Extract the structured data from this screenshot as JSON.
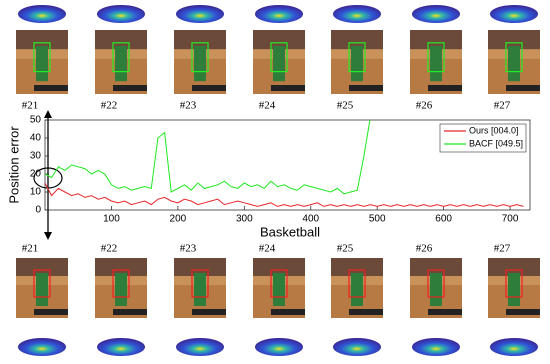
{
  "chart_data": {
    "type": "line",
    "xlabel": "Basketball",
    "ylabel": "Position error",
    "frames_top": [
      "#21",
      "#22",
      "#23",
      "#24",
      "#25",
      "#26",
      "#27"
    ],
    "frames_bottom": [
      "#21",
      "#22",
      "#23",
      "#24",
      "#25",
      "#26",
      "#27"
    ],
    "x": [
      0,
      10,
      20,
      30,
      40,
      50,
      60,
      70,
      80,
      90,
      100,
      110,
      120,
      130,
      140,
      150,
      160,
      170,
      180,
      190,
      200,
      210,
      220,
      230,
      240,
      250,
      260,
      270,
      280,
      290,
      300,
      310,
      320,
      330,
      340,
      350,
      360,
      370,
      380,
      390,
      400,
      410,
      420,
      430,
      440,
      450,
      460,
      470,
      480,
      490,
      500,
      510,
      520,
      530,
      540,
      550,
      560,
      570,
      580,
      590,
      600,
      610,
      620,
      630,
      640,
      650,
      660,
      670,
      680,
      690,
      700,
      710,
      720
    ],
    "series": [
      {
        "name": "Ours [004.0]",
        "color": "#e8262a",
        "values": [
          15,
          8,
          12,
          10,
          8,
          9,
          7,
          8,
          6,
          7,
          5,
          4,
          5,
          3,
          4,
          5,
          3,
          6,
          7,
          5,
          4,
          6,
          5,
          3,
          4,
          5,
          6,
          3,
          4,
          5,
          4,
          3,
          2,
          3,
          4,
          2,
          3,
          2,
          3,
          2,
          3,
          4,
          2,
          3,
          2,
          3,
          2,
          3,
          2,
          3,
          2,
          3,
          2,
          3,
          2,
          3,
          2,
          3,
          2,
          3,
          2,
          3,
          2,
          3,
          2,
          3,
          2,
          3,
          2,
          3,
          2,
          3,
          2
        ]
      },
      {
        "name": "BACF [049.5]",
        "color": "#1ee81e",
        "values": [
          20,
          18,
          24,
          22,
          25,
          24,
          23,
          20,
          22,
          20,
          14,
          12,
          13,
          11,
          12,
          13,
          12,
          40,
          43,
          10,
          12,
          14,
          11,
          15,
          12,
          13,
          14,
          16,
          13,
          12,
          15,
          13,
          14,
          12,
          16,
          13,
          14,
          12,
          11,
          14,
          13,
          12,
          11,
          10,
          12,
          9,
          10,
          11,
          30,
          52,
          null,
          null,
          null,
          null,
          null,
          null,
          null,
          null,
          null,
          null,
          null,
          null,
          null,
          null,
          null,
          null,
          null,
          null,
          null,
          null,
          null,
          null,
          null
        ]
      }
    ],
    "xlim": [
      0,
      730
    ],
    "xticks": [
      100,
      200,
      300,
      400,
      500,
      600,
      700
    ],
    "ylim": [
      0,
      50
    ],
    "yticks": [
      0,
      10,
      20,
      30,
      40,
      50
    ],
    "legend": "upper right"
  }
}
